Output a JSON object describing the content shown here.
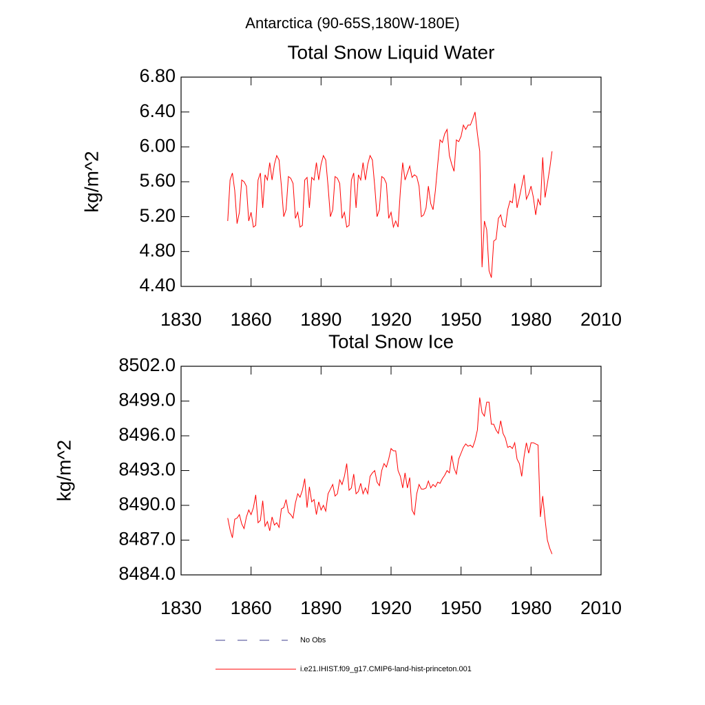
{
  "title": "Antarctica (90-65S,180W-180E)",
  "chart_data": [
    {
      "type": "line",
      "title": "Total Snow Liquid Water",
      "ylabel": "kg/m^2",
      "x": [
        1850,
        1851,
        1852,
        1853,
        1854,
        1855,
        1856,
        1857,
        1858,
        1859,
        1860,
        1861,
        1862,
        1863,
        1864,
        1865,
        1866,
        1867,
        1868,
        1869,
        1870,
        1871,
        1872,
        1873,
        1874,
        1875,
        1876,
        1877,
        1878,
        1879,
        1880,
        1881,
        1882,
        1883,
        1884,
        1885,
        1886,
        1887,
        1888,
        1889,
        1890,
        1891,
        1892,
        1893,
        1894,
        1895,
        1896,
        1897,
        1898,
        1899,
        1900,
        1901,
        1902,
        1903,
        1904,
        1905,
        1906,
        1907,
        1908,
        1909,
        1910,
        1911,
        1912,
        1913,
        1914,
        1915,
        1916,
        1917,
        1918,
        1919,
        1920,
        1921,
        1922,
        1923,
        1924,
        1925,
        1926,
        1927,
        1928,
        1929,
        1930,
        1931,
        1932,
        1933,
        1934,
        1935,
        1936,
        1937,
        1938,
        1939,
        1940,
        1941,
        1942,
        1943,
        1944,
        1945,
        1946,
        1947,
        1948,
        1949,
        1950,
        1951,
        1952,
        1953,
        1954,
        1955,
        1956,
        1957,
        1958,
        1959,
        1960,
        1961,
        1962,
        1963,
        1964,
        1965,
        1966,
        1967,
        1968,
        1969,
        1970,
        1971,
        1972,
        1973,
        1974,
        1975,
        1976,
        1977,
        1978,
        1979,
        1980,
        1981,
        1982,
        1983,
        1984,
        1985,
        1986,
        1987,
        1988,
        1989
      ],
      "xlim": [
        1830,
        2010
      ],
      "xticks": [
        1830,
        1860,
        1890,
        1920,
        1950,
        1980,
        2010
      ],
      "ylim": [
        4.4,
        6.8
      ],
      "yticks": [
        {
          "value": 4.4,
          "label": "4.40"
        },
        {
          "value": 4.8,
          "label": "4.80"
        },
        {
          "value": 5.2,
          "label": "5.20"
        },
        {
          "value": 5.6,
          "label": "5.60"
        },
        {
          "value": 6.0,
          "label": "6.00"
        },
        {
          "value": 6.4,
          "label": "6.40"
        },
        {
          "value": 6.8,
          "label": "6.80"
        }
      ],
      "series": [
        {
          "color": "#ff0000",
          "values": [
            5.15,
            5.62,
            5.7,
            5.5,
            5.12,
            5.25,
            5.62,
            5.6,
            5.55,
            5.15,
            5.25,
            5.08,
            5.1,
            5.62,
            5.7,
            5.3,
            5.68,
            5.62,
            5.82,
            5.62,
            5.8,
            5.9,
            5.85,
            5.55,
            5.2,
            5.28,
            5.66,
            5.64,
            5.58,
            5.18,
            5.25,
            5.08,
            5.1,
            5.62,
            5.65,
            5.3,
            5.65,
            5.62,
            5.82,
            5.62,
            5.8,
            5.9,
            5.85,
            5.55,
            5.2,
            5.28,
            5.66,
            5.64,
            5.58,
            5.18,
            5.25,
            5.08,
            5.1,
            5.62,
            5.7,
            5.3,
            5.68,
            5.62,
            5.82,
            5.62,
            5.8,
            5.9,
            5.85,
            5.55,
            5.2,
            5.28,
            5.66,
            5.64,
            5.58,
            5.18,
            5.25,
            5.08,
            5.15,
            5.08,
            5.5,
            5.82,
            5.62,
            5.7,
            5.78,
            5.65,
            5.68,
            5.66,
            5.55,
            5.2,
            5.22,
            5.3,
            5.55,
            5.35,
            5.28,
            5.5,
            5.8,
            6.08,
            6.05,
            6.15,
            6.2,
            5.9,
            5.8,
            5.72,
            6.08,
            6.06,
            6.12,
            6.25,
            6.2,
            6.25,
            6.25,
            6.32,
            6.4,
            6.15,
            5.95,
            4.62,
            5.15,
            5.05,
            4.58,
            4.5,
            4.92,
            4.94,
            5.18,
            5.22,
            5.1,
            5.08,
            5.28,
            5.38,
            5.36,
            5.58,
            5.3,
            5.42,
            5.55,
            5.68,
            5.4,
            5.46,
            5.55,
            5.42,
            5.22,
            5.4,
            5.33,
            5.88,
            5.42,
            5.58,
            5.75,
            5.95
          ]
        }
      ]
    },
    {
      "type": "line",
      "title": "Total Snow Ice",
      "ylabel": "kg/m^2",
      "x": [
        1850,
        1851,
        1852,
        1853,
        1854,
        1855,
        1856,
        1857,
        1858,
        1859,
        1860,
        1861,
        1862,
        1863,
        1864,
        1865,
        1866,
        1867,
        1868,
        1869,
        1870,
        1871,
        1872,
        1873,
        1874,
        1875,
        1876,
        1877,
        1878,
        1879,
        1880,
        1881,
        1882,
        1883,
        1884,
        1885,
        1886,
        1887,
        1888,
        1889,
        1890,
        1891,
        1892,
        1893,
        1894,
        1895,
        1896,
        1897,
        1898,
        1899,
        1900,
        1901,
        1902,
        1903,
        1904,
        1905,
        1906,
        1907,
        1908,
        1909,
        1910,
        1911,
        1912,
        1913,
        1914,
        1915,
        1916,
        1917,
        1918,
        1919,
        1920,
        1921,
        1922,
        1923,
        1924,
        1925,
        1926,
        1927,
        1928,
        1929,
        1930,
        1931,
        1932,
        1933,
        1934,
        1935,
        1936,
        1937,
        1938,
        1939,
        1940,
        1941,
        1942,
        1943,
        1944,
        1945,
        1946,
        1947,
        1948,
        1949,
        1950,
        1951,
        1952,
        1953,
        1954,
        1955,
        1956,
        1957,
        1958,
        1959,
        1960,
        1961,
        1962,
        1963,
        1964,
        1965,
        1966,
        1967,
        1968,
        1969,
        1970,
        1971,
        1972,
        1973,
        1974,
        1975,
        1976,
        1977,
        1978,
        1979,
        1980,
        1981,
        1982,
        1983,
        1984,
        1985,
        1986,
        1987,
        1988,
        1989
      ],
      "xlim": [
        1830,
        2010
      ],
      "xticks": [
        1830,
        1860,
        1890,
        1920,
        1950,
        1980,
        2010
      ],
      "ylim": [
        8484,
        8502
      ],
      "yticks": [
        {
          "value": 8484,
          "label": "8484.0"
        },
        {
          "value": 8487,
          "label": "8487.0"
        },
        {
          "value": 8490,
          "label": "8490.0"
        },
        {
          "value": 8493,
          "label": "8493.0"
        },
        {
          "value": 8496,
          "label": "8496.0"
        },
        {
          "value": 8499,
          "label": "8499.0"
        },
        {
          "value": 8502,
          "label": "8502.0"
        }
      ],
      "series": [
        {
          "color": "#ff0000",
          "values": [
            8488.9,
            8487.9,
            8487.2,
            8488.8,
            8488.9,
            8489.2,
            8488.4,
            8488.0,
            8489.0,
            8489.6,
            8489.2,
            8489.8,
            8490.9,
            8488.5,
            8488.7,
            8490.4,
            8488.2,
            8488.6,
            8487.8,
            8489.0,
            8488.3,
            8488.5,
            8488.1,
            8489.7,
            8489.8,
            8490.5,
            8489.4,
            8489.2,
            8488.9,
            8490.2,
            8491.0,
            8490.7,
            8491.3,
            8492.3,
            8489.8,
            8491.6,
            8490.3,
            8490.5,
            8489.2,
            8490.3,
            8489.6,
            8490.0,
            8489.5,
            8491.0,
            8491.4,
            8491.8,
            8490.8,
            8491.0,
            8492.2,
            8491.8,
            8492.5,
            8493.6,
            8491.3,
            8491.5,
            8492.7,
            8491.0,
            8491.2,
            8491.9,
            8491.0,
            8491.5,
            8491.0,
            8492.5,
            8492.8,
            8493.0,
            8492.0,
            8491.7,
            8493.0,
            8493.6,
            8493.3,
            8494.0,
            8494.9,
            8494.7,
            8494.7,
            8493.0,
            8492.5,
            8491.5,
            8492.8,
            8491.5,
            8492.4,
            8489.6,
            8489.2,
            8491.0,
            8491.8,
            8491.4,
            8491.4,
            8491.5,
            8492.1,
            8491.5,
            8491.8,
            8491.6,
            8492.0,
            8491.9,
            8492.3,
            8492.6,
            8493.0,
            8492.8,
            8494.3,
            8493.2,
            8492.7,
            8494.0,
            8494.5,
            8495.0,
            8495.3,
            8495.1,
            8495.2,
            8495.0,
            8495.6,
            8496.5,
            8499.3,
            8498.0,
            8497.7,
            8498.9,
            8498.9,
            8497.0,
            8497.0,
            8496.5,
            8496.2,
            8497.3,
            8496.2,
            8495.8,
            8495.0,
            8495.1,
            8494.9,
            8495.4,
            8494.0,
            8493.6,
            8492.5,
            8494.2,
            8495.4,
            8494.5,
            8495.4,
            8495.4,
            8495.3,
            8495.2,
            8489.0,
            8490.8,
            8488.8,
            8487.0,
            8486.3,
            8485.8
          ]
        }
      ]
    }
  ],
  "legend": [
    {
      "label": "No Obs",
      "color": "#3c3c8c",
      "style": "dashed"
    },
    {
      "label": "i.e21.IHIST.f09_g17.CMIP6-land-hist-princeton.001",
      "color": "#ff0000",
      "style": "solid"
    }
  ]
}
